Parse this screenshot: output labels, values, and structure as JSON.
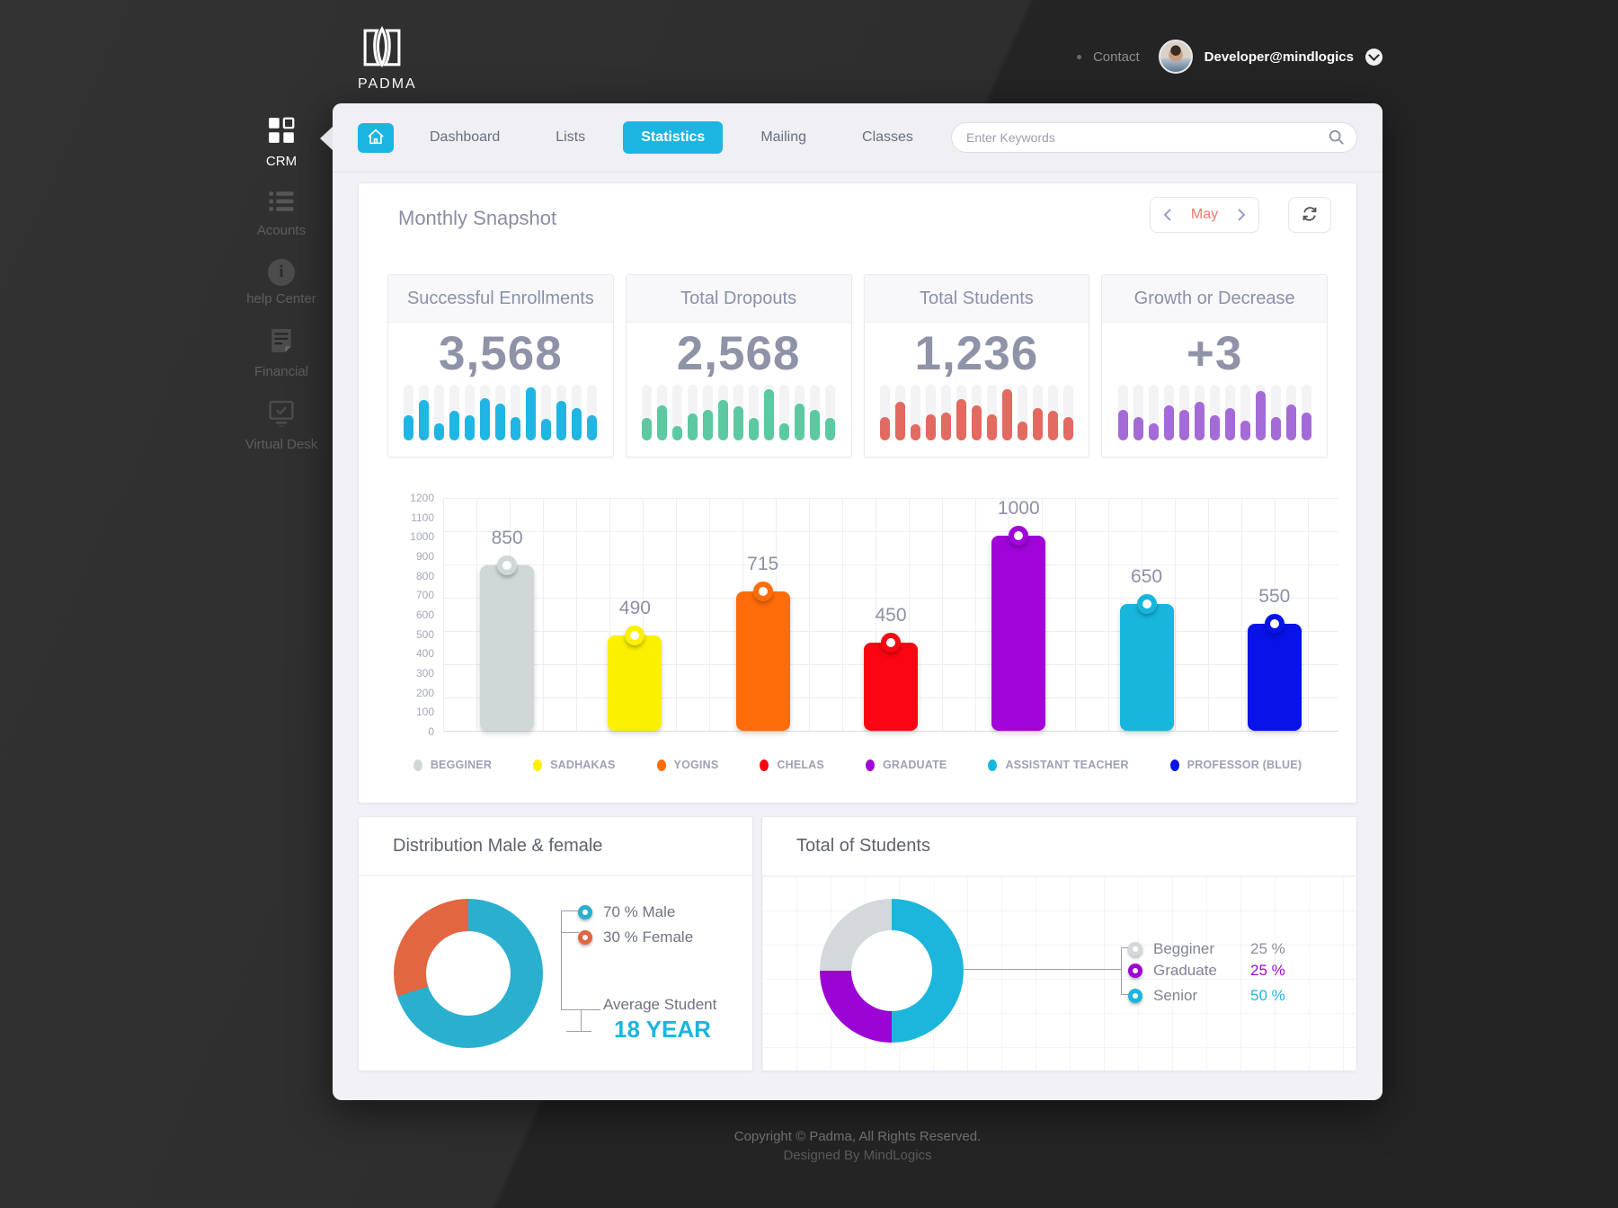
{
  "header": {
    "logo_text": "PADMA",
    "contact_label": "Contact",
    "user_email": "Developer@mindlogics"
  },
  "sidebar": {
    "items": [
      {
        "label": "CRM",
        "icon": "grid",
        "active": true
      },
      {
        "label": "Acounts",
        "icon": "list",
        "active": false
      },
      {
        "label": "help Center",
        "icon": "info",
        "active": false
      },
      {
        "label": "Financial",
        "icon": "document",
        "active": false
      },
      {
        "label": "Virtual Desk",
        "icon": "monitor",
        "active": false
      }
    ]
  },
  "nav": {
    "tabs": [
      {
        "label": "Dashboard",
        "active": false
      },
      {
        "label": "Lists",
        "active": false
      },
      {
        "label": "Statistics",
        "active": true
      },
      {
        "label": "Mailing",
        "active": false
      },
      {
        "label": "Classes",
        "active": false
      }
    ],
    "search_placeholder": "Enter Keywords"
  },
  "snapshot": {
    "title": "Monthly Snapshot",
    "month": "May"
  },
  "stat_cards": [
    {
      "title": "Successful Enrollments",
      "value": "3,568",
      "color": "#1FB6E4",
      "bars": [
        45,
        72,
        30,
        52,
        45,
        75,
        65,
        42,
        95,
        38,
        70,
        58,
        45
      ]
    },
    {
      "title": "Total Dropouts",
      "value": "2,568",
      "color": "#5CC9A0",
      "bars": [
        40,
        62,
        25,
        48,
        55,
        72,
        60,
        40,
        92,
        30,
        65,
        55,
        40
      ]
    },
    {
      "title": "Total Students",
      "value": "1,236",
      "color": "#E36A60",
      "bars": [
        42,
        68,
        28,
        46,
        50,
        73,
        62,
        46,
        92,
        34,
        58,
        52,
        42
      ]
    },
    {
      "title": "Growth or Decrease",
      "value": "+3",
      "color": "#A46BD8",
      "bars": [
        55,
        42,
        30,
        62,
        55,
        68,
        45,
        58,
        35,
        88,
        42,
        64,
        50
      ]
    }
  ],
  "chart_data": [
    {
      "type": "bar",
      "title": "",
      "categories": [
        "BEGGINER",
        "SADHAKAS",
        "YOGINS",
        "CHELAS",
        "GRADUATE",
        "ASSISTANT TEACHER",
        "PROFESSOR (BLUE)"
      ],
      "values": [
        850,
        490,
        715,
        450,
        1000,
        650,
        550
      ],
      "colors": [
        "#CFD8D7",
        "#FAF000",
        "#FF6C0A",
        "#FA0511",
        "#A004D8",
        "#17B6DC",
        "#0713E8"
      ],
      "xlabel": "",
      "ylabel": "",
      "ylim": [
        0,
        1200
      ],
      "ytick_step": 100,
      "grid": true,
      "legend_position": "bottom"
    },
    {
      "type": "pie",
      "title": "Distribution Male & female",
      "labels": [
        "70 % Male",
        "30 % Female"
      ],
      "values": [
        70,
        30
      ],
      "colors": [
        "#2BAFCE",
        "#E2663F"
      ],
      "annotation_label": "Average Student",
      "annotation_value": "18 YEAR"
    },
    {
      "type": "pie",
      "title": "Total of Students",
      "labels": [
        "Senior",
        "Graduate",
        "Begginer"
      ],
      "values": [
        50,
        25,
        25
      ],
      "colors": [
        "#1CB5DC",
        "#9B04D4",
        "#D3D9DB"
      ],
      "legend_rows": [
        {
          "label": "Begginer",
          "value": "25 %",
          "swatch": "#D3D9DB",
          "value_color": "#8A8FA0"
        },
        {
          "label": "Graduate",
          "value": "25 %",
          "swatch": "#9B04D4",
          "value_color": "#A004D4"
        },
        {
          "label": "Senior",
          "value": "50 %",
          "swatch": "#1CB5DC",
          "value_color": "#1CB5DC"
        }
      ]
    }
  ],
  "footer": {
    "line1": "Copyright © Padma, All Rights Reserved.",
    "line2": "Designed By MindLogics"
  }
}
